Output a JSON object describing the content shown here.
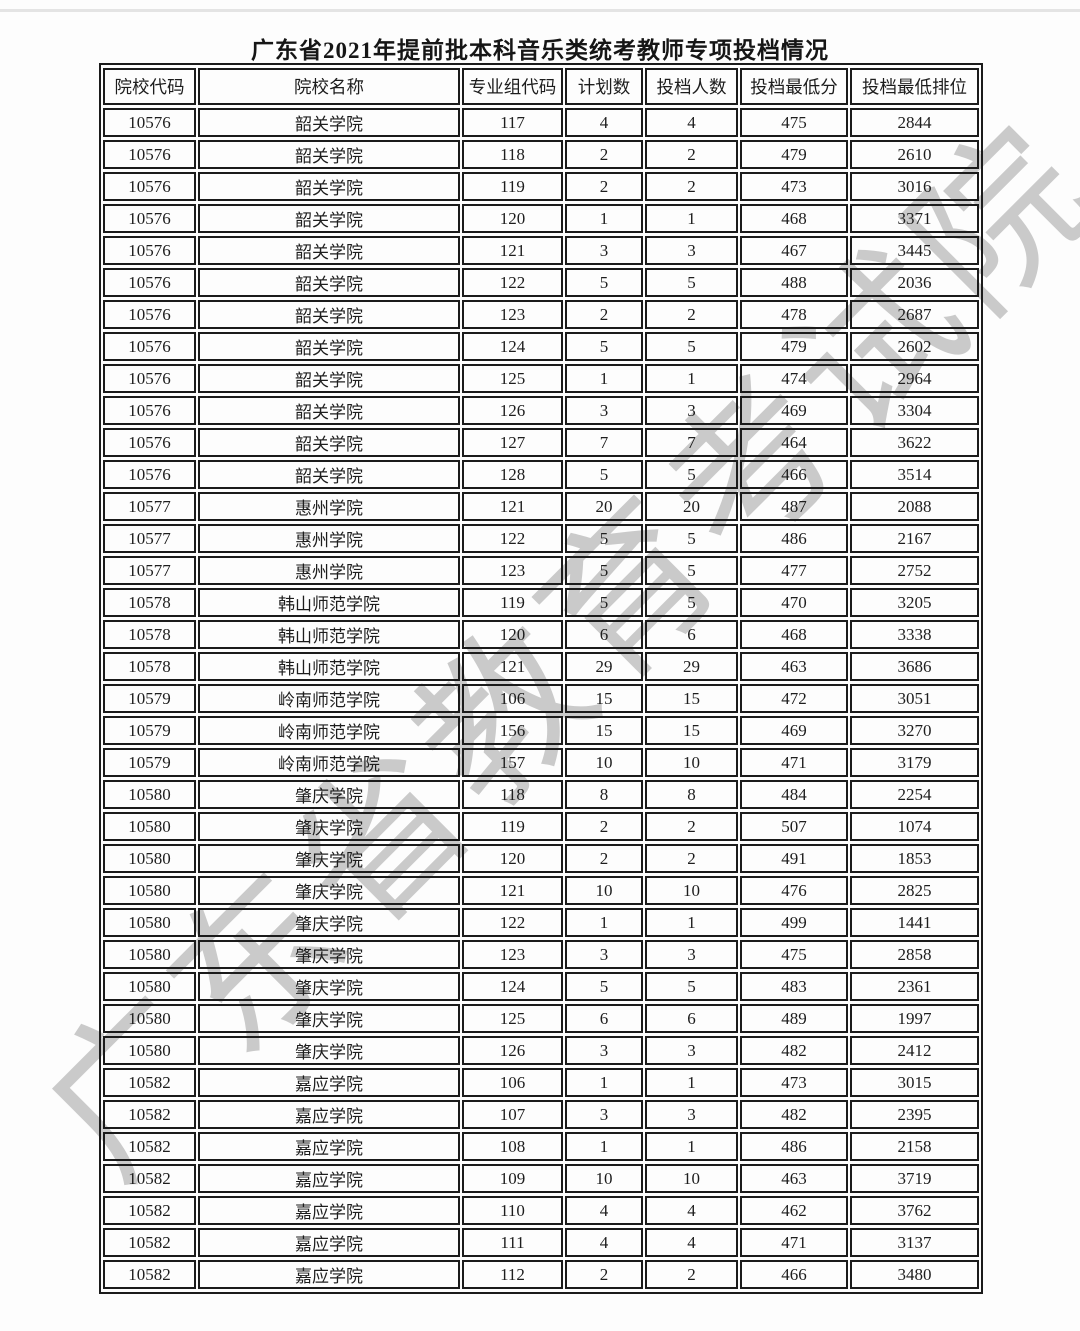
{
  "page": {
    "title": "广东省2021年提前批本科音乐类统考教师专项投档情况",
    "watermark": "广东省教育考试院"
  },
  "table": {
    "columns": [
      "院校代码",
      "院校名称",
      "专业组代码",
      "计划数",
      "投档人数",
      "投档最低分",
      "投档最低排位"
    ],
    "rows": [
      [
        "10576",
        "韶关学院",
        "117",
        "4",
        "4",
        "475",
        "2844"
      ],
      [
        "10576",
        "韶关学院",
        "118",
        "2",
        "2",
        "479",
        "2610"
      ],
      [
        "10576",
        "韶关学院",
        "119",
        "2",
        "2",
        "473",
        "3016"
      ],
      [
        "10576",
        "韶关学院",
        "120",
        "1",
        "1",
        "468",
        "3371"
      ],
      [
        "10576",
        "韶关学院",
        "121",
        "3",
        "3",
        "467",
        "3445"
      ],
      [
        "10576",
        "韶关学院",
        "122",
        "5",
        "5",
        "488",
        "2036"
      ],
      [
        "10576",
        "韶关学院",
        "123",
        "2",
        "2",
        "478",
        "2687"
      ],
      [
        "10576",
        "韶关学院",
        "124",
        "5",
        "5",
        "479",
        "2602"
      ],
      [
        "10576",
        "韶关学院",
        "125",
        "1",
        "1",
        "474",
        "2964"
      ],
      [
        "10576",
        "韶关学院",
        "126",
        "3",
        "3",
        "469",
        "3304"
      ],
      [
        "10576",
        "韶关学院",
        "127",
        "7",
        "7",
        "464",
        "3622"
      ],
      [
        "10576",
        "韶关学院",
        "128",
        "5",
        "5",
        "466",
        "3514"
      ],
      [
        "10577",
        "惠州学院",
        "121",
        "20",
        "20",
        "487",
        "2088"
      ],
      [
        "10577",
        "惠州学院",
        "122",
        "5",
        "5",
        "486",
        "2167"
      ],
      [
        "10577",
        "惠州学院",
        "123",
        "5",
        "5",
        "477",
        "2752"
      ],
      [
        "10578",
        "韩山师范学院",
        "119",
        "5",
        "5",
        "470",
        "3205"
      ],
      [
        "10578",
        "韩山师范学院",
        "120",
        "6",
        "6",
        "468",
        "3338"
      ],
      [
        "10578",
        "韩山师范学院",
        "121",
        "29",
        "29",
        "463",
        "3686"
      ],
      [
        "10579",
        "岭南师范学院",
        "106",
        "15",
        "15",
        "472",
        "3051"
      ],
      [
        "10579",
        "岭南师范学院",
        "156",
        "15",
        "15",
        "469",
        "3270"
      ],
      [
        "10579",
        "岭南师范学院",
        "157",
        "10",
        "10",
        "471",
        "3179"
      ],
      [
        "10580",
        "肇庆学院",
        "118",
        "8",
        "8",
        "484",
        "2254"
      ],
      [
        "10580",
        "肇庆学院",
        "119",
        "2",
        "2",
        "507",
        "1074"
      ],
      [
        "10580",
        "肇庆学院",
        "120",
        "2",
        "2",
        "491",
        "1853"
      ],
      [
        "10580",
        "肇庆学院",
        "121",
        "10",
        "10",
        "476",
        "2825"
      ],
      [
        "10580",
        "肇庆学院",
        "122",
        "1",
        "1",
        "499",
        "1441"
      ],
      [
        "10580",
        "肇庆学院",
        "123",
        "3",
        "3",
        "475",
        "2858"
      ],
      [
        "10580",
        "肇庆学院",
        "124",
        "5",
        "5",
        "483",
        "2361"
      ],
      [
        "10580",
        "肇庆学院",
        "125",
        "6",
        "6",
        "489",
        "1997"
      ],
      [
        "10580",
        "肇庆学院",
        "126",
        "3",
        "3",
        "482",
        "2412"
      ],
      [
        "10582",
        "嘉应学院",
        "106",
        "1",
        "1",
        "473",
        "3015"
      ],
      [
        "10582",
        "嘉应学院",
        "107",
        "3",
        "3",
        "482",
        "2395"
      ],
      [
        "10582",
        "嘉应学院",
        "108",
        "1",
        "1",
        "486",
        "2158"
      ],
      [
        "10582",
        "嘉应学院",
        "109",
        "10",
        "10",
        "463",
        "3719"
      ],
      [
        "10582",
        "嘉应学院",
        "110",
        "4",
        "4",
        "462",
        "3762"
      ],
      [
        "10582",
        "嘉应学院",
        "111",
        "4",
        "4",
        "471",
        "3137"
      ],
      [
        "10582",
        "嘉应学院",
        "112",
        "2",
        "2",
        "466",
        "3480"
      ]
    ]
  }
}
